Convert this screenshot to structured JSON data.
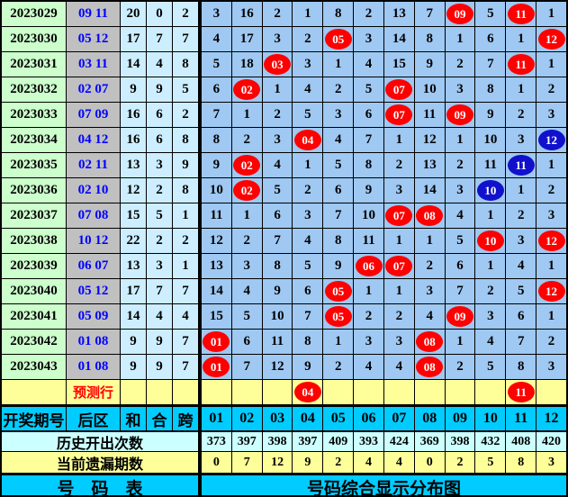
{
  "columns": [
    "01",
    "02",
    "03",
    "04",
    "05",
    "06",
    "07",
    "08",
    "09",
    "10",
    "11",
    "12"
  ],
  "header": {
    "period": "开奖期号",
    "back": "后区",
    "sum": "和",
    "combo": "合",
    "span": "跨"
  },
  "rows": [
    {
      "period": "2023029",
      "back": "09 11",
      "sum": "20",
      "combo": "0",
      "span": "2",
      "cells": [
        "3",
        "16",
        "2",
        "1",
        "8",
        "2",
        "13",
        "7",
        "09r",
        "5",
        "11r",
        "1"
      ]
    },
    {
      "period": "2023030",
      "back": "05 12",
      "sum": "17",
      "combo": "7",
      "span": "7",
      "cells": [
        "4",
        "17",
        "3",
        "2",
        "05r",
        "3",
        "14",
        "8",
        "1",
        "6",
        "1",
        "12r"
      ]
    },
    {
      "period": "2023031",
      "back": "03 11",
      "sum": "14",
      "combo": "4",
      "span": "8",
      "cells": [
        "5",
        "18",
        "03r",
        "3",
        "1",
        "4",
        "15",
        "9",
        "2",
        "7",
        "11r",
        "1"
      ]
    },
    {
      "period": "2023032",
      "back": "02 07",
      "sum": "9",
      "combo": "9",
      "span": "5",
      "cells": [
        "6",
        "02r",
        "1",
        "4",
        "2",
        "5",
        "07r",
        "10",
        "3",
        "8",
        "1",
        "2"
      ]
    },
    {
      "period": "2023033",
      "back": "07 09",
      "sum": "16",
      "combo": "6",
      "span": "2",
      "cells": [
        "7",
        "1",
        "2",
        "5",
        "3",
        "6",
        "07r",
        "11",
        "09r",
        "9",
        "2",
        "3"
      ]
    },
    {
      "period": "2023034",
      "back": "04 12",
      "sum": "16",
      "combo": "6",
      "span": "8",
      "cells": [
        "8",
        "2",
        "3",
        "04r",
        "4",
        "7",
        "1",
        "12",
        "1",
        "10",
        "3",
        "12b"
      ]
    },
    {
      "period": "2023035",
      "back": "02 11",
      "sum": "13",
      "combo": "3",
      "span": "9",
      "cells": [
        "9",
        "02r",
        "4",
        "1",
        "5",
        "8",
        "2",
        "13",
        "2",
        "11",
        "11b",
        "1"
      ]
    },
    {
      "period": "2023036",
      "back": "02 10",
      "sum": "12",
      "combo": "2",
      "span": "8",
      "cells": [
        "10",
        "02r",
        "5",
        "2",
        "6",
        "9",
        "3",
        "14",
        "3",
        "10b",
        "1",
        "2"
      ]
    },
    {
      "period": "2023037",
      "back": "07 08",
      "sum": "15",
      "combo": "5",
      "span": "1",
      "cells": [
        "11",
        "1",
        "6",
        "3",
        "7",
        "10",
        "07r",
        "08r",
        "4",
        "1",
        "2",
        "3"
      ]
    },
    {
      "period": "2023038",
      "back": "10 12",
      "sum": "22",
      "combo": "2",
      "span": "2",
      "cells": [
        "12",
        "2",
        "7",
        "4",
        "8",
        "11",
        "1",
        "1",
        "5",
        "10r",
        "3",
        "12r"
      ]
    },
    {
      "period": "2023039",
      "back": "06 07",
      "sum": "13",
      "combo": "3",
      "span": "1",
      "cells": [
        "13",
        "3",
        "8",
        "5",
        "9",
        "06r",
        "07r",
        "2",
        "6",
        "1",
        "4",
        "1"
      ]
    },
    {
      "period": "2023040",
      "back": "05 12",
      "sum": "17",
      "combo": "7",
      "span": "7",
      "cells": [
        "14",
        "4",
        "9",
        "6",
        "05r",
        "1",
        "1",
        "3",
        "7",
        "2",
        "5",
        "12r"
      ]
    },
    {
      "period": "2023041",
      "back": "05 09",
      "sum": "14",
      "combo": "4",
      "span": "4",
      "cells": [
        "15",
        "5",
        "10",
        "7",
        "05r",
        "2",
        "2",
        "4",
        "09r",
        "3",
        "6",
        "1"
      ]
    },
    {
      "period": "2023042",
      "back": "01 08",
      "sum": "9",
      "combo": "9",
      "span": "7",
      "cells": [
        "01r",
        "6",
        "11",
        "8",
        "1",
        "3",
        "3",
        "08r",
        "1",
        "4",
        "7",
        "2"
      ]
    },
    {
      "period": "2023043",
      "back": "01 08",
      "sum": "9",
      "combo": "9",
      "span": "7",
      "cells": [
        "01r",
        "7",
        "12",
        "9",
        "2",
        "4",
        "4",
        "08r",
        "2",
        "5",
        "8",
        "3"
      ]
    }
  ],
  "prediction": {
    "label": "预测行",
    "cells": [
      "",
      "",
      "",
      "04r",
      "",
      "",
      "",
      "",
      "",
      "",
      "11r",
      ""
    ]
  },
  "history": {
    "label": "历史开出次数",
    "values": [
      "373",
      "397",
      "398",
      "397",
      "409",
      "393",
      "424",
      "369",
      "398",
      "432",
      "408",
      "420"
    ]
  },
  "miss": {
    "label": "当前遗漏期数",
    "values": [
      "0",
      "7",
      "12",
      "9",
      "2",
      "4",
      "4",
      "0",
      "2",
      "5",
      "8",
      "3"
    ]
  },
  "footer": {
    "left": "号　码　表",
    "right": "号码综合显示分布图"
  },
  "legend": {
    "red_marker_meaning": "drawn back-zone number",
    "blue_marker_meaning": "alternate-marked drawn number"
  },
  "colors": {
    "red": "#ff0000",
    "blue": "#1111cc",
    "cyan": "#00ccff",
    "grid_blue": "#9fc8f2",
    "pale_cyan": "#ccffff",
    "pale_stat": "#cceeff",
    "green": "#ccffcc",
    "gray": "#c0c0c0",
    "yellow": "#ffff99",
    "back_text": "#0000ff",
    "prediction_text": "#ff0000"
  }
}
